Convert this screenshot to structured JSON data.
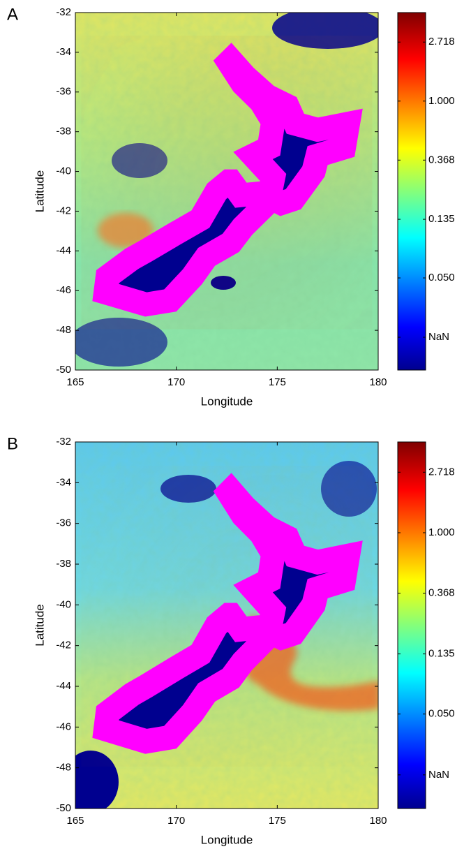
{
  "chart_data": [
    {
      "type": "map",
      "panel_label": "A",
      "xlabel": "Longitude",
      "ylabel": "Latitude",
      "xlim": [
        165,
        180
      ],
      "xticks": [
        165,
        170,
        175,
        180
      ],
      "ylim": [
        -50,
        -32
      ],
      "yticks": [
        -50,
        -48,
        -46,
        -44,
        -42,
        -40,
        -38,
        -36,
        -34,
        -32
      ],
      "colorbar": {
        "scale": "log",
        "clim": [
          0.0105,
          4.48
        ],
        "ticks": [
          {
            "value": 0.0183,
            "label": "NaN"
          },
          {
            "value": 0.05,
            "label": "0.050"
          },
          0.135,
          0.368,
          {
            "value": 1,
            "label": "1.000"
          },
          2.718
        ]
      }
    },
    {
      "type": "map",
      "panel_label": "B",
      "xlabel": "Longitude",
      "ylabel": "Latitude",
      "xlim": [
        165,
        180
      ],
      "xticks": [
        165,
        170,
        175,
        180
      ],
      "ylim": [
        -50,
        -32
      ],
      "yticks": [
        -50,
        -48,
        -46,
        -44,
        -42,
        -40,
        -38,
        -36,
        -34,
        -32
      ],
      "colorbar": {
        "scale": "log",
        "clim": [
          0.0105,
          4.48
        ],
        "ticks": [
          {
            "value": 0.0183,
            "label": "NaN"
          },
          {
            "value": 0.05,
            "label": "0.050"
          },
          0.135,
          0.368,
          {
            "value": 1,
            "label": "1.000"
          },
          2.718
        ]
      }
    }
  ]
}
